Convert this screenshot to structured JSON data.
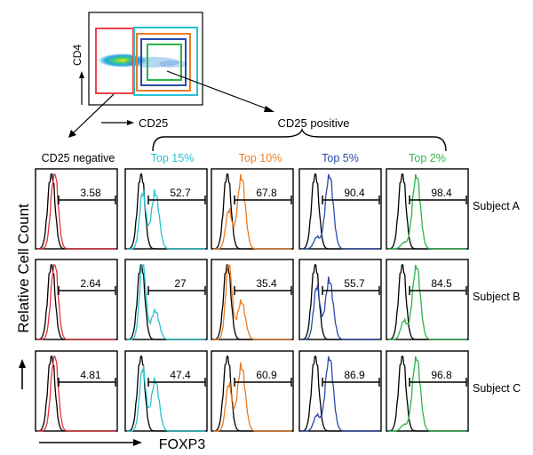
{
  "colors": {
    "cd25_negative": "#e8303a",
    "top15": "#27c3cf",
    "top10": "#e87c24",
    "top5": "#2b4aa8",
    "top2": "#2bb44a",
    "control": "#000000"
  },
  "gating_plot": {
    "y_label": "CD4",
    "x_label": "CD25"
  },
  "bracket_label": "CD25 positive",
  "chart_data": {
    "type": "histogram_grid",
    "xlabel": "FOXP3",
    "ylabel": "Relative Cell Count",
    "columns": [
      {
        "label": "CD25 negative",
        "color_key": "cd25_negative"
      },
      {
        "label": "Top 15%",
        "color_key": "top15"
      },
      {
        "label": "Top 10%",
        "color_key": "top10"
      },
      {
        "label": "Top 5%",
        "color_key": "top5"
      },
      {
        "label": "Top 2%",
        "color_key": "top2"
      }
    ],
    "rows": [
      {
        "label": "Subject A",
        "values": [
          "3.58",
          "52.7",
          "67.8",
          "90.4",
          "98.4"
        ]
      },
      {
        "label": "Subject B",
        "values": [
          "2.64",
          "27",
          "35.4",
          "55.7",
          "84.5"
        ]
      },
      {
        "label": "Subject C",
        "values": [
          "4.81",
          "47.4",
          "60.9",
          "86.9",
          "96.8"
        ]
      }
    ]
  }
}
